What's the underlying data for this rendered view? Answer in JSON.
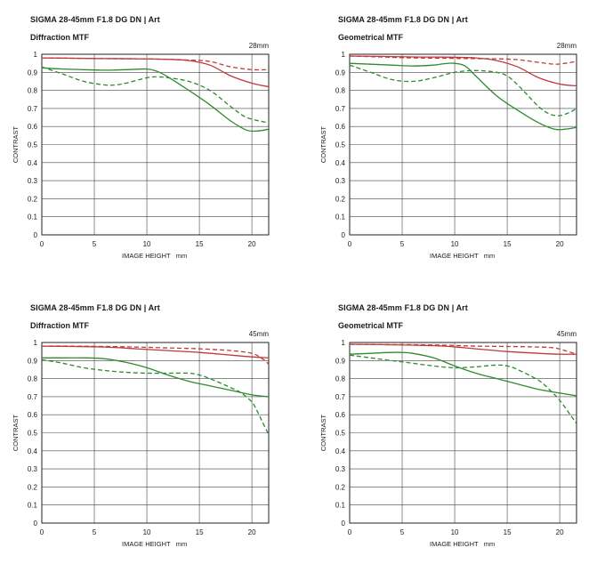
{
  "chart_data": [
    {
      "type": "line",
      "title": "SIGMA 28-45mm F1.8 DG DN | Art",
      "subtitle": "Diffraction MTF",
      "annotation": "28mm",
      "xlabel": "IMAGE HEIGHT   mm",
      "ylabel": "CONTRAST",
      "xlim": [
        0,
        21.6
      ],
      "ylim": [
        0,
        1
      ],
      "xticks": [
        0,
        5,
        10,
        15,
        20
      ],
      "yticks": [
        0,
        0.1,
        0.2,
        0.3,
        0.4,
        0.5,
        0.6,
        0.7,
        0.8,
        0.9,
        1
      ],
      "grid": true,
      "series": [
        {
          "color": "#c0393b",
          "dash": false,
          "x": [
            0,
            3,
            6,
            9,
            12,
            14,
            16,
            18,
            20,
            21.6
          ],
          "y": [
            0.98,
            0.978,
            0.976,
            0.975,
            0.972,
            0.965,
            0.94,
            0.88,
            0.84,
            0.82
          ]
        },
        {
          "color": "#c0393b",
          "dash": true,
          "x": [
            0,
            3,
            6,
            9,
            12,
            14,
            16,
            18,
            20,
            21.6
          ],
          "y": [
            0.98,
            0.978,
            0.976,
            0.975,
            0.972,
            0.968,
            0.96,
            0.93,
            0.915,
            0.915
          ]
        },
        {
          "color": "#2e8b2e",
          "dash": false,
          "x": [
            0,
            2,
            4,
            6,
            8,
            10,
            11,
            12,
            14,
            16,
            18,
            19.5,
            20.5,
            21.6
          ],
          "y": [
            0.925,
            0.918,
            0.915,
            0.912,
            0.915,
            0.918,
            0.905,
            0.875,
            0.8,
            0.72,
            0.63,
            0.58,
            0.575,
            0.585
          ]
        },
        {
          "color": "#2e8b2e",
          "dash": true,
          "x": [
            0,
            2,
            4,
            6,
            7,
            8,
            10,
            11,
            12,
            14,
            16,
            18,
            19.5,
            21.6
          ],
          "y": [
            0.93,
            0.89,
            0.85,
            0.83,
            0.83,
            0.84,
            0.87,
            0.875,
            0.87,
            0.85,
            0.8,
            0.71,
            0.65,
            0.62
          ]
        }
      ]
    },
    {
      "type": "line",
      "title": "SIGMA 28-45mm F1.8 DG DN | Art",
      "subtitle": "Geometrical MTF",
      "annotation": "28mm",
      "xlabel": "IMAGE HEIGHT   mm",
      "ylabel": "CONTRAST",
      "xlim": [
        0,
        21.6
      ],
      "ylim": [
        0,
        1
      ],
      "xticks": [
        0,
        5,
        10,
        15,
        20
      ],
      "yticks": [
        0,
        0.1,
        0.2,
        0.3,
        0.4,
        0.5,
        0.6,
        0.7,
        0.8,
        0.9,
        1
      ],
      "grid": true,
      "series": [
        {
          "color": "#c0393b",
          "dash": false,
          "x": [
            0,
            3,
            6,
            9,
            12,
            14,
            16,
            18,
            20,
            21.6
          ],
          "y": [
            0.99,
            0.988,
            0.985,
            0.984,
            0.98,
            0.965,
            0.93,
            0.87,
            0.835,
            0.825
          ]
        },
        {
          "color": "#c0393b",
          "dash": true,
          "x": [
            0,
            3,
            6,
            9,
            12,
            14,
            16,
            18,
            19.5,
            20.5,
            21.6
          ],
          "y": [
            0.99,
            0.985,
            0.98,
            0.978,
            0.976,
            0.975,
            0.97,
            0.955,
            0.945,
            0.95,
            0.96
          ]
        },
        {
          "color": "#2e8b2e",
          "dash": false,
          "x": [
            0,
            2,
            4,
            6,
            8,
            9,
            10,
            11,
            12,
            14,
            16,
            18,
            19.5,
            20.5,
            21.6
          ],
          "y": [
            0.95,
            0.945,
            0.94,
            0.935,
            0.94,
            0.948,
            0.95,
            0.935,
            0.88,
            0.77,
            0.69,
            0.62,
            0.585,
            0.585,
            0.595
          ]
        },
        {
          "color": "#2e8b2e",
          "dash": true,
          "x": [
            0,
            2,
            4,
            6,
            8,
            10,
            12,
            14,
            15,
            16,
            17,
            18,
            19,
            20,
            21,
            21.6
          ],
          "y": [
            0.94,
            0.9,
            0.86,
            0.85,
            0.87,
            0.9,
            0.91,
            0.9,
            0.88,
            0.83,
            0.77,
            0.71,
            0.67,
            0.66,
            0.68,
            0.7
          ]
        }
      ]
    },
    {
      "type": "line",
      "title": "SIGMA 28-45mm F1.8 DG DN | Art",
      "subtitle": "Diffraction MTF",
      "annotation": "45mm",
      "xlabel": "IMAGE HEIGHT   mm",
      "ylabel": "CONTRAST",
      "xlim": [
        0,
        21.6
      ],
      "ylim": [
        0,
        1
      ],
      "xticks": [
        0,
        5,
        10,
        15,
        20
      ],
      "yticks": [
        0,
        0.1,
        0.2,
        0.3,
        0.4,
        0.5,
        0.6,
        0.7,
        0.8,
        0.9,
        1
      ],
      "grid": true,
      "series": [
        {
          "color": "#c0393b",
          "dash": false,
          "x": [
            0,
            3,
            6,
            9,
            12,
            15,
            18,
            20,
            21.6
          ],
          "y": [
            0.98,
            0.978,
            0.975,
            0.965,
            0.955,
            0.945,
            0.93,
            0.92,
            0.915
          ]
        },
        {
          "color": "#c0393b",
          "dash": true,
          "x": [
            0,
            3,
            6,
            9,
            12,
            15,
            18,
            20,
            21,
            21.6
          ],
          "y": [
            0.98,
            0.98,
            0.978,
            0.975,
            0.97,
            0.965,
            0.955,
            0.94,
            0.91,
            0.88
          ]
        },
        {
          "color": "#2e8b2e",
          "dash": false,
          "x": [
            0,
            2,
            4,
            6,
            8,
            10,
            12,
            14,
            16,
            18,
            20,
            21.6
          ],
          "y": [
            0.915,
            0.915,
            0.915,
            0.91,
            0.89,
            0.86,
            0.82,
            0.785,
            0.76,
            0.735,
            0.71,
            0.7
          ]
        },
        {
          "color": "#2e8b2e",
          "dash": true,
          "x": [
            0,
            2,
            4,
            6,
            8,
            10,
            12,
            14,
            15,
            16,
            18,
            19,
            20,
            20.5,
            21,
            21.6
          ],
          "y": [
            0.905,
            0.885,
            0.86,
            0.845,
            0.835,
            0.83,
            0.83,
            0.83,
            0.82,
            0.8,
            0.75,
            0.72,
            0.67,
            0.62,
            0.56,
            0.49
          ]
        }
      ]
    },
    {
      "type": "line",
      "title": "SIGMA 28-45mm F1.8 DG DN | Art",
      "subtitle": "Geometrical MTF",
      "annotation": "45mm",
      "xlabel": "IMAGE HEIGHT   mm",
      "ylabel": "CONTRAST",
      "xlim": [
        0,
        21.6
      ],
      "ylim": [
        0,
        1
      ],
      "xticks": [
        0,
        5,
        10,
        15,
        20
      ],
      "yticks": [
        0,
        0.1,
        0.2,
        0.3,
        0.4,
        0.5,
        0.6,
        0.7,
        0.8,
        0.9,
        1
      ],
      "grid": true,
      "series": [
        {
          "color": "#c0393b",
          "dash": false,
          "x": [
            0,
            3,
            6,
            9,
            12,
            15,
            18,
            20,
            21.6
          ],
          "y": [
            0.99,
            0.988,
            0.985,
            0.98,
            0.965,
            0.95,
            0.94,
            0.935,
            0.935
          ]
        },
        {
          "color": "#c0393b",
          "dash": true,
          "x": [
            0,
            3,
            6,
            9,
            12,
            15,
            18,
            19.5,
            20.5,
            21.6
          ],
          "y": [
            0.99,
            0.988,
            0.988,
            0.985,
            0.98,
            0.978,
            0.975,
            0.97,
            0.955,
            0.935
          ]
        },
        {
          "color": "#2e8b2e",
          "dash": false,
          "x": [
            0,
            2,
            4,
            5,
            6,
            8,
            10,
            12,
            14,
            16,
            18,
            20,
            21.6
          ],
          "y": [
            0.935,
            0.94,
            0.945,
            0.945,
            0.94,
            0.915,
            0.87,
            0.83,
            0.8,
            0.77,
            0.74,
            0.72,
            0.705
          ]
        },
        {
          "color": "#2e8b2e",
          "dash": true,
          "x": [
            0,
            2,
            4,
            6,
            8,
            10,
            12,
            14,
            15,
            16,
            18,
            19,
            20,
            21,
            21.6
          ],
          "y": [
            0.93,
            0.915,
            0.9,
            0.885,
            0.87,
            0.86,
            0.865,
            0.875,
            0.87,
            0.85,
            0.79,
            0.74,
            0.68,
            0.6,
            0.55
          ]
        }
      ]
    }
  ]
}
